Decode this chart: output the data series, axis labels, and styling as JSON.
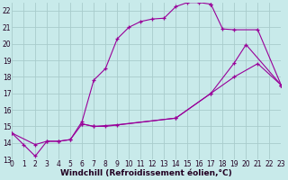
{
  "background_color": "#c8eaea",
  "grid_color": "#a8cccc",
  "line_color": "#990099",
  "xlabel": "Windchill (Refroidissement éolien,°C)",
  "xlabel_fontsize": 6.5,
  "tick_fontsize": 5.5,
  "xlim": [
    0,
    23
  ],
  "ylim": [
    13,
    22.5
  ],
  "yticks": [
    13,
    14,
    15,
    16,
    17,
    18,
    19,
    20,
    21,
    22
  ],
  "xticks": [
    0,
    1,
    2,
    3,
    4,
    5,
    6,
    7,
    8,
    9,
    10,
    11,
    12,
    13,
    14,
    15,
    16,
    17,
    18,
    19,
    20,
    21,
    22,
    23
  ],
  "curve1_x": [
    0,
    1,
    2,
    3,
    4,
    5,
    6,
    7,
    8,
    9,
    10,
    11,
    12,
    13,
    14,
    15,
    16,
    17
  ],
  "curve1_y": [
    14.6,
    13.9,
    13.2,
    14.1,
    14.1,
    14.2,
    15.3,
    17.8,
    18.5,
    20.3,
    21.0,
    21.35,
    21.5,
    21.55,
    22.25,
    22.5,
    22.5,
    22.4
  ],
  "curve2_x": [
    17,
    18,
    19,
    21,
    23
  ],
  "curve2_y": [
    22.4,
    20.9,
    20.85,
    20.85,
    17.5
  ],
  "curve3_x": [
    0,
    2,
    3,
    4,
    5,
    6,
    7,
    8,
    14,
    17,
    19,
    21,
    23
  ],
  "curve3_y": [
    14.6,
    13.9,
    14.1,
    14.1,
    14.2,
    15.15,
    15.0,
    15.0,
    15.5,
    17.0,
    18.0,
    18.8,
    17.5
  ],
  "curve4_x": [
    6,
    7,
    9,
    14,
    17,
    19,
    20,
    23
  ],
  "curve4_y": [
    15.15,
    15.0,
    15.1,
    15.5,
    17.0,
    18.85,
    19.95,
    17.5
  ]
}
